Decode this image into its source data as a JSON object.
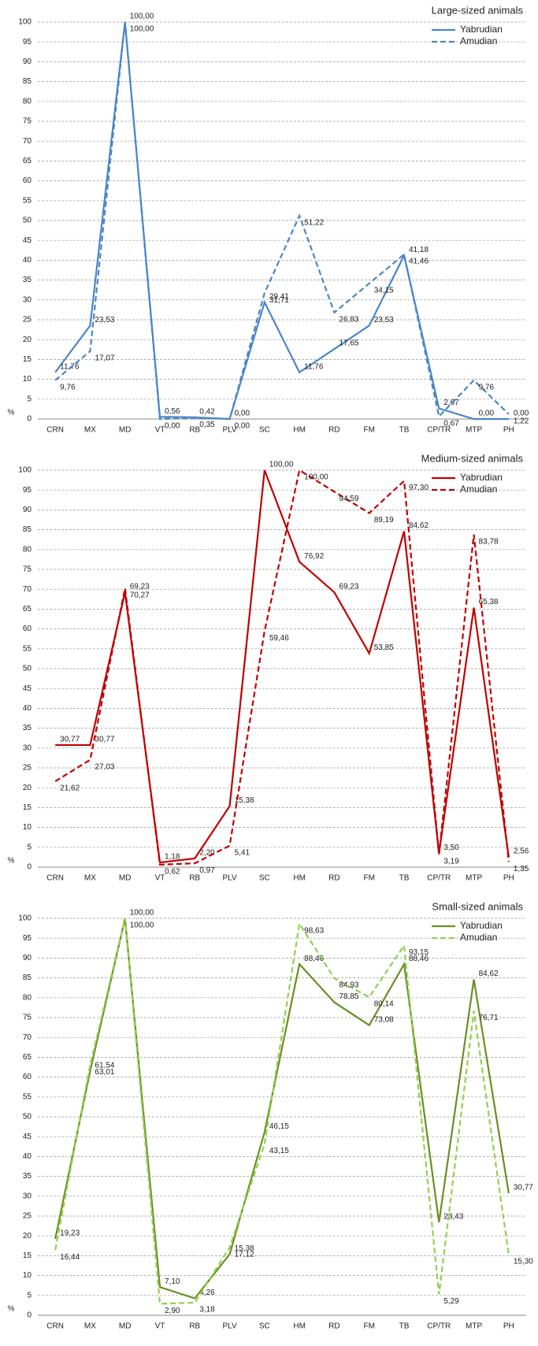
{
  "chart_data": [
    {
      "type": "line",
      "title": "Large-sized animals",
      "y_label": "%",
      "categories": [
        "CRN",
        "MX",
        "MD",
        "VT",
        "RB",
        "PLV",
        "SC",
        "HM",
        "RD",
        "FM",
        "TB",
        "CP/TR",
        "MTP",
        "PH"
      ],
      "series": [
        {
          "name": "Yabrudian",
          "color": "#4a86c8",
          "style": "solid",
          "values": [
            11.76,
            23.53,
            100,
            0.56,
            0.42,
            0,
            29.41,
            11.76,
            17.65,
            23.53,
            41.18,
            2.67,
            0,
            0
          ],
          "value_labels": [
            "11,76",
            "23,53",
            "100,00",
            "0,56",
            "0,42",
            "0,00",
            "29,41",
            "11,76",
            "17,65",
            "23,53",
            "41,18",
            "2,67",
            "0,00",
            "0,00"
          ]
        },
        {
          "name": "Amudian",
          "color": "#4a86c8",
          "style": "dashed",
          "values": [
            9.76,
            17.07,
            100,
            0,
            0.35,
            0,
            31.71,
            51.22,
            26.83,
            34.15,
            41.46,
            0.67,
            9.76,
            1.22
          ],
          "value_labels": [
            "9,76",
            "17,07",
            "100,00",
            "0,00",
            "0,35",
            "0,00",
            "31,71",
            "51,22",
            "26,83",
            "34,15",
            "41,46",
            "0,67",
            "9,76",
            "1,22"
          ]
        }
      ],
      "ylim": [
        0,
        100
      ],
      "yticks": [
        0,
        5,
        10,
        15,
        20,
        25,
        30,
        35,
        40,
        45,
        50,
        55,
        60,
        65,
        70,
        75,
        80,
        85,
        90,
        95,
        100
      ],
      "grid": true,
      "legend": "upper right"
    },
    {
      "type": "line",
      "title": "Medium-sized animals",
      "y_label": "%",
      "categories": [
        "CRN",
        "MX",
        "MD",
        "VT",
        "RB",
        "PLV",
        "SC",
        "HM",
        "RD",
        "FM",
        "TB",
        "CP/TR",
        "MTP",
        "PH"
      ],
      "series": [
        {
          "name": "Yabrudian",
          "color": "#c00000",
          "style": "solid",
          "values": [
            30.77,
            30.77,
            69.23,
            1.18,
            2.2,
            15.38,
            100,
            76.92,
            69.23,
            53.85,
            84.62,
            3.5,
            65.38,
            2.56
          ],
          "value_labels": [
            "30,77",
            "30,77",
            "69,23",
            "1,18",
            "2,20",
            "15,38",
            "100,00",
            "76,92",
            "69,23",
            "53,85",
            "84,62",
            "3,50",
            "65,38",
            "2,56"
          ]
        },
        {
          "name": "Amudian",
          "color": "#c00000",
          "style": "dashed",
          "values": [
            21.62,
            27.03,
            70.27,
            0.62,
            0.97,
            5.41,
            59.46,
            100,
            94.59,
            89.19,
            97.3,
            3.19,
            83.78,
            1.35
          ],
          "value_labels": [
            "21,62",
            "27,03",
            "70,27",
            "0,62",
            "0,97",
            "5,41",
            "59,46",
            "100,00",
            "94,59",
            "89,19",
            "97,30",
            "3,19",
            "83,78",
            "1,35"
          ]
        }
      ],
      "ylim": [
        0,
        100
      ],
      "yticks": [
        0,
        5,
        10,
        15,
        20,
        25,
        30,
        35,
        40,
        45,
        50,
        55,
        60,
        65,
        70,
        75,
        80,
        85,
        90,
        95,
        100
      ],
      "grid": true,
      "legend": "upper right"
    },
    {
      "type": "line",
      "title": "Small-sized animals",
      "y_label": "%",
      "categories": [
        "CRN",
        "MX",
        "MD",
        "VT",
        "RB",
        "PLV",
        "SC",
        "HM",
        "RD",
        "FM",
        "TB",
        "CP/TR",
        "MTP",
        "PH"
      ],
      "series": [
        {
          "name": "Yabrudian",
          "color": "#6b8e23",
          "style": "solid",
          "values": [
            19.23,
            61.54,
            100,
            7.1,
            4.26,
            15.38,
            46.15,
            88.46,
            78.85,
            73.08,
            88.46,
            23.43,
            84.62,
            30.77
          ],
          "value_labels": [
            "19,23",
            "61,54",
            "100,00",
            "7,10",
            "4,26",
            "15,38",
            "46,15",
            "88,46",
            "78,85",
            "73,08",
            "88,46",
            "23,43",
            "84,62",
            "30,77"
          ]
        },
        {
          "name": "Amudian",
          "color": "#92d050",
          "style": "dashed",
          "values": [
            16.44,
            63.01,
            100,
            2.9,
            3.18,
            17.12,
            43.15,
            98.63,
            84.93,
            80.14,
            93.15,
            5.29,
            76.71,
            15.3
          ],
          "value_labels": [
            "16,44",
            "63,01",
            "100,00",
            "2,90",
            "3,18",
            "17,12",
            "43,15",
            "98,63",
            "84,93",
            "80,14",
            "93,15",
            "5,29",
            "76,71",
            "15,30"
          ]
        }
      ],
      "ylim": [
        0,
        100
      ],
      "yticks": [
        0,
        5,
        10,
        15,
        20,
        25,
        30,
        35,
        40,
        45,
        50,
        55,
        60,
        65,
        70,
        75,
        80,
        85,
        90,
        95,
        100
      ],
      "grid": true,
      "legend": "upper right"
    }
  ]
}
